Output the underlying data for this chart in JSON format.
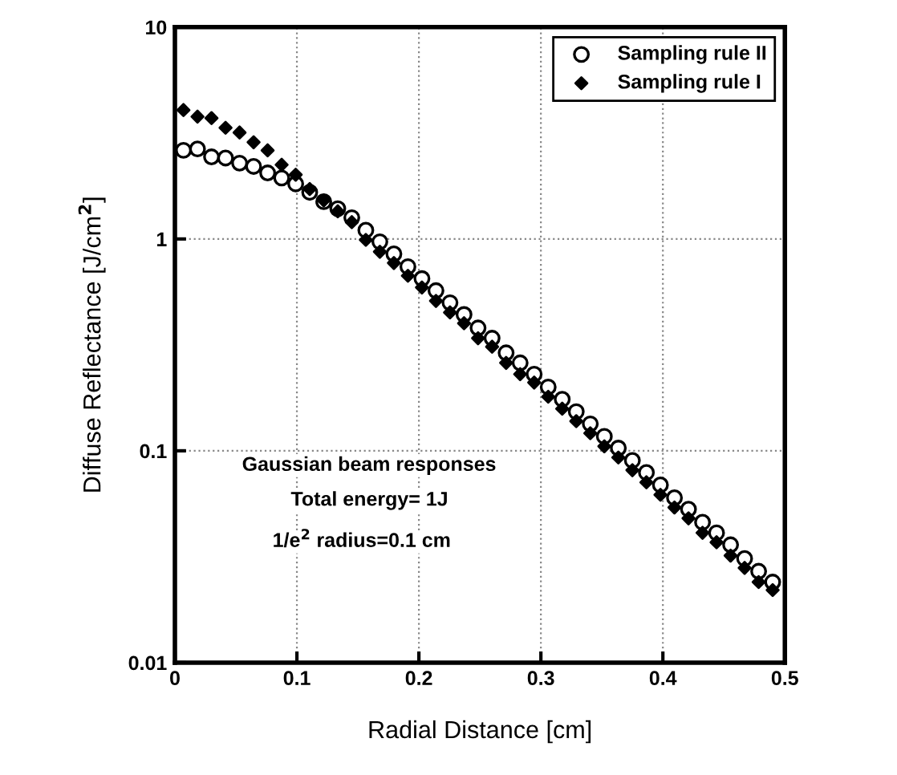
{
  "chart_data": {
    "type": "scatter",
    "xlabel": "Radial Distance [cm]",
    "ylabel": "Diffuse Reflectance [J/cm$^{2}$]",
    "annotations": [
      "Gaussian beam responses",
      "Total energy= 1J",
      "1/e$^{2}$ radius=0.1 cm"
    ],
    "x": [
      0.007,
      0.0185,
      0.03,
      0.0415,
      0.053,
      0.0645,
      0.076,
      0.0875,
      0.099,
      0.1105,
      0.122,
      0.1335,
      0.145,
      0.1565,
      0.168,
      0.1795,
      0.191,
      0.2025,
      0.214,
      0.2255,
      0.237,
      0.2485,
      0.26,
      0.2715,
      0.283,
      0.2945,
      0.306,
      0.3175,
      0.329,
      0.3405,
      0.352,
      0.3635,
      0.375,
      0.3865,
      0.398,
      0.4095,
      0.421,
      0.4325,
      0.444,
      0.4555,
      0.467,
      0.4785,
      0.49
    ],
    "series": [
      {
        "name": "Sampling rule II",
        "color": "#000000",
        "marker": "circle",
        "values": [
          2.62,
          2.66,
          2.44,
          2.41,
          2.28,
          2.2,
          2.05,
          1.94,
          1.82,
          1.66,
          1.5,
          1.39,
          1.26,
          1.1,
          0.97,
          0.85,
          0.74,
          0.65,
          0.57,
          0.5,
          0.44,
          0.38,
          0.34,
          0.29,
          0.26,
          0.23,
          0.2,
          0.175,
          0.153,
          0.134,
          0.117,
          0.103,
          0.09,
          0.079,
          0.069,
          0.06,
          0.053,
          0.046,
          0.041,
          0.036,
          0.031,
          0.027,
          0.024
        ]
      },
      {
        "name": "Sampling rule I",
        "color": "#000000",
        "marker": "diamond",
        "values": [
          4.06,
          3.78,
          3.72,
          3.35,
          3.18,
          2.86,
          2.62,
          2.24,
          2.01,
          1.72,
          1.52,
          1.35,
          1.2,
          0.99,
          0.87,
          0.77,
          0.67,
          0.59,
          0.51,
          0.45,
          0.4,
          0.34,
          0.31,
          0.26,
          0.23,
          0.21,
          0.18,
          0.158,
          0.138,
          0.121,
          0.105,
          0.093,
          0.081,
          0.071,
          0.062,
          0.054,
          0.048,
          0.041,
          0.037,
          0.032,
          0.028,
          0.024,
          0.022
        ]
      }
    ],
    "log": "y",
    "xlim": [
      0,
      0.5
    ],
    "ylim": [
      0.01,
      10
    ],
    "xticks": [
      {
        "value": 0,
        "label": "0"
      },
      0.1,
      0.2,
      0.3,
      0.4,
      0.5
    ],
    "yticks": [
      0.01,
      0.1,
      1,
      10
    ],
    "grid": true,
    "legend": "top right"
  }
}
